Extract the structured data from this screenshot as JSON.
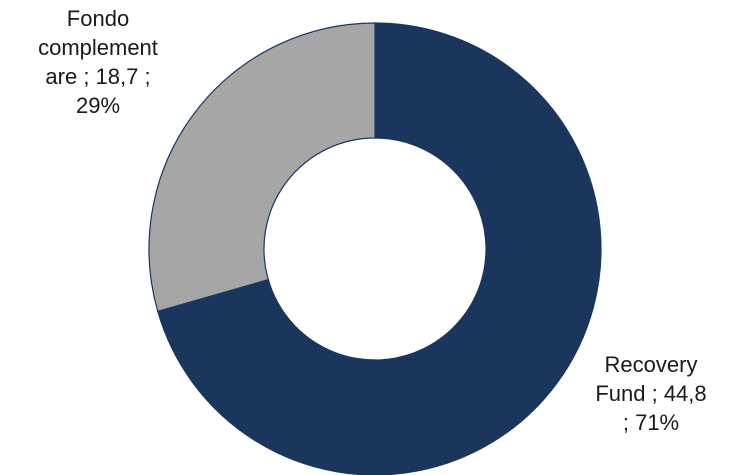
{
  "chart_data": {
    "type": "pie",
    "variant": "donut",
    "title": "",
    "slices": [
      {
        "name": "Recovery Fund",
        "value": 44.8,
        "percent": 71,
        "color": "#1b365d",
        "label_lines": [
          "Recovery",
          "Fund ;  44,8",
          "; 71%"
        ]
      },
      {
        "name": "Fondo complementare",
        "value": 18.7,
        "percent": 29,
        "color": "#a6a6a6",
        "label_lines": [
          "Fondo",
          "complement",
          "are ;  18,7   ;",
          "29%"
        ]
      }
    ],
    "legend": "none"
  }
}
